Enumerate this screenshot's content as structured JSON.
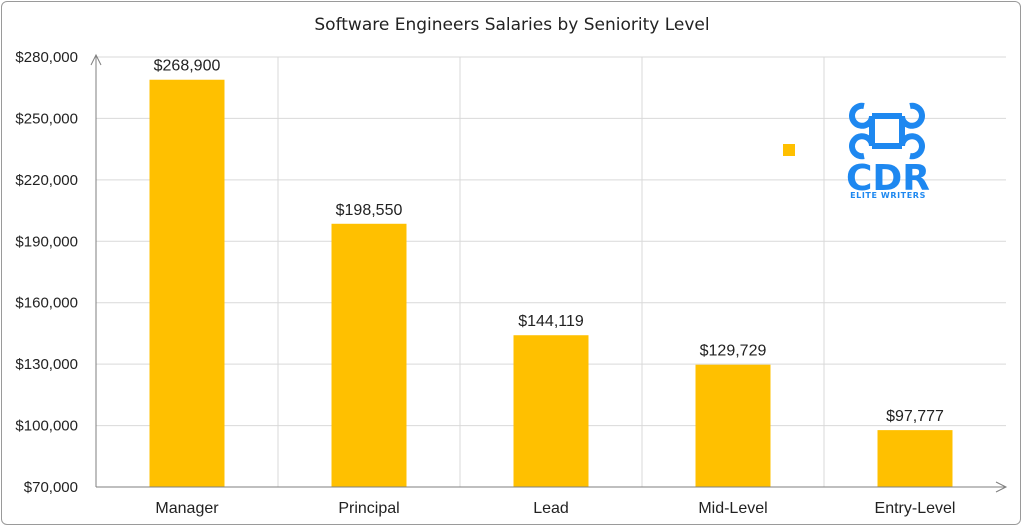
{
  "chart_data": {
    "type": "bar",
    "title": "Software Engineers Salaries by Seniority Level",
    "categories": [
      "Manager",
      "Principal",
      "Lead",
      "Mid-Level",
      "Entry-Level"
    ],
    "values": [
      268900,
      198550,
      144119,
      129729,
      97777
    ],
    "data_labels": [
      "$268,900",
      "$198,550",
      "$144,119",
      "$129,729",
      "$97,777"
    ],
    "ylim": [
      70000,
      280000
    ],
    "yticks": [
      70000,
      100000,
      130000,
      160000,
      190000,
      220000,
      250000,
      280000
    ],
    "ytick_labels": [
      "$70,000",
      "$100,000",
      "$130,000",
      "$160,000",
      "$190,000",
      "$220,000",
      "$250,000",
      "$280,000"
    ],
    "xlabel": "",
    "ylabel": "",
    "grid": true,
    "bar_color": "#ffc000",
    "grid_color": "#d9d9d9"
  },
  "logo": {
    "text": "CDR",
    "subtext": "ELITE WRITERS",
    "icon": "command-key-icon",
    "color": "#1e88f0"
  },
  "legend_marker_color": "#ffc000"
}
